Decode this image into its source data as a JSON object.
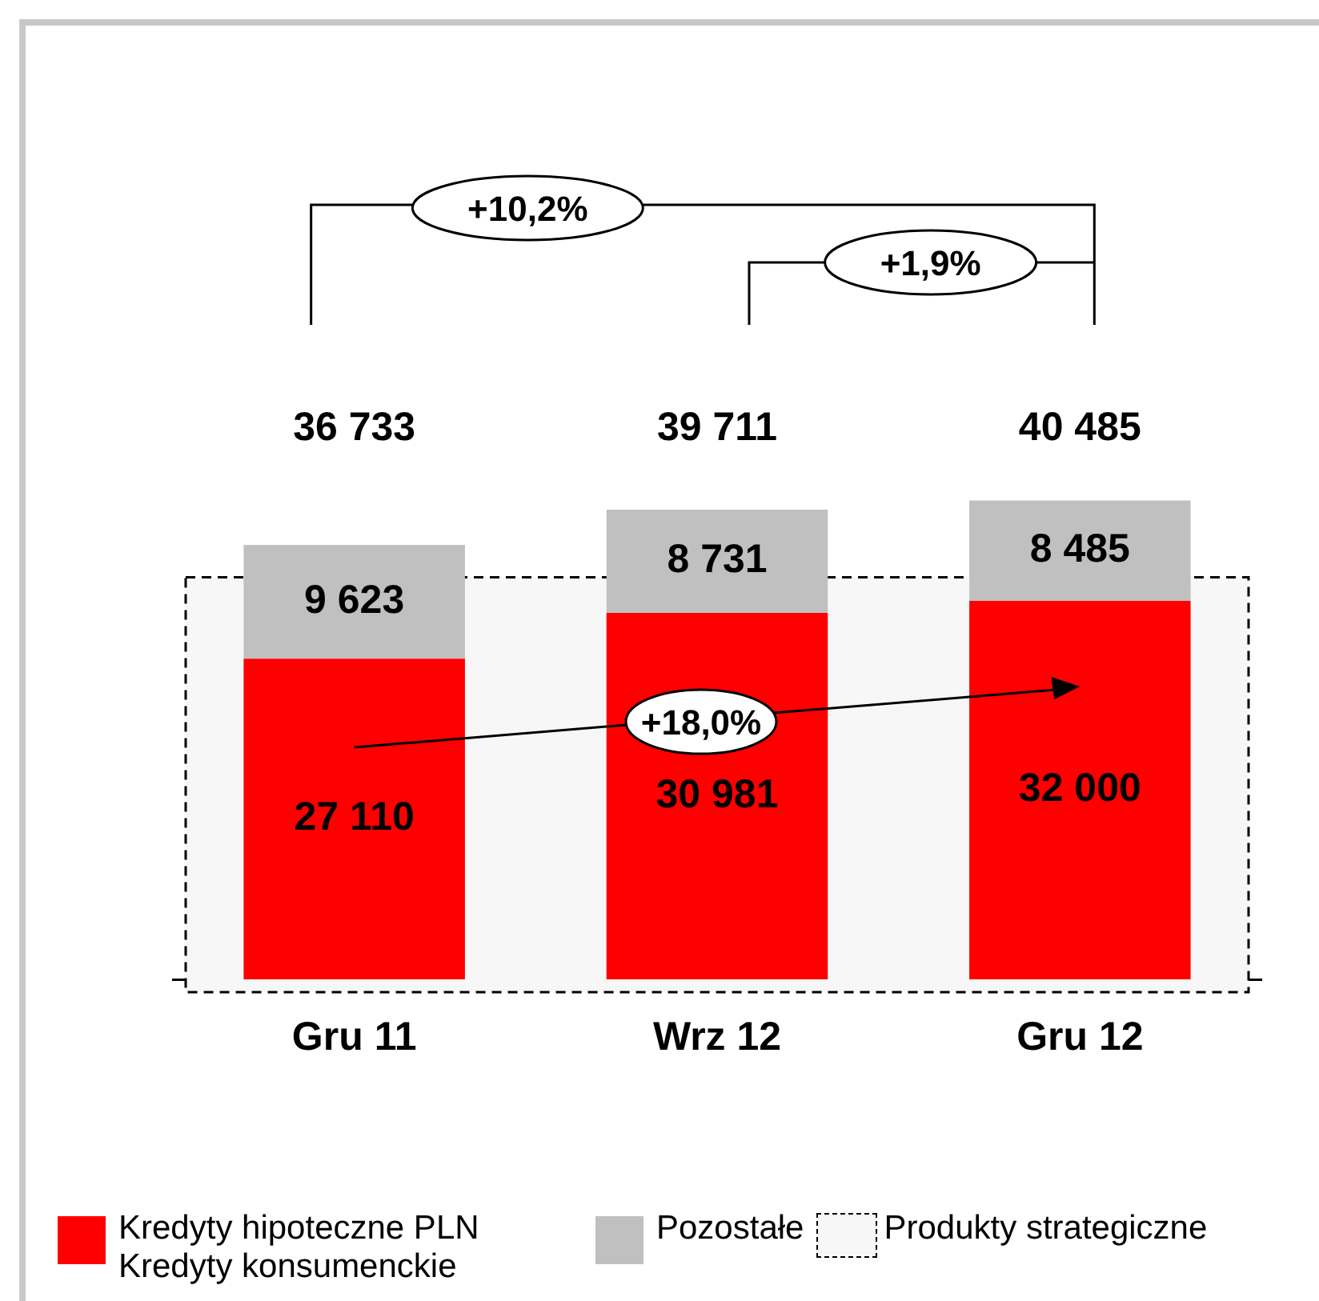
{
  "chart_data": {
    "type": "bar",
    "stacked": true,
    "categories": [
      "Gru 11",
      "Wrz 12",
      "Gru 12"
    ],
    "series": [
      {
        "name": "Kredyty hipoteczne PLN Kredyty konsumenckie",
        "color": "#ff0000",
        "values": [
          27110,
          30981,
          32000
        ],
        "value_labels": [
          "27 110",
          "30 981",
          "32 000"
        ]
      },
      {
        "name": "Pozostałe",
        "color": "#c0c0c0",
        "values": [
          9623,
          8731,
          8485
        ],
        "value_labels": [
          "9 623",
          "8 731",
          "8 485"
        ]
      }
    ],
    "totals": [
      "36 733",
      "39 711",
      "40 485"
    ],
    "bands": [
      {
        "axis": "y",
        "from": 0,
        "to": 34000,
        "label": "Produkty strategiczne",
        "color": "#f7f7f7"
      }
    ],
    "annotations": [
      "+10,2%",
      "+1,9%",
      "+18,0%"
    ],
    "legend": "bottom",
    "grid": false
  }
}
